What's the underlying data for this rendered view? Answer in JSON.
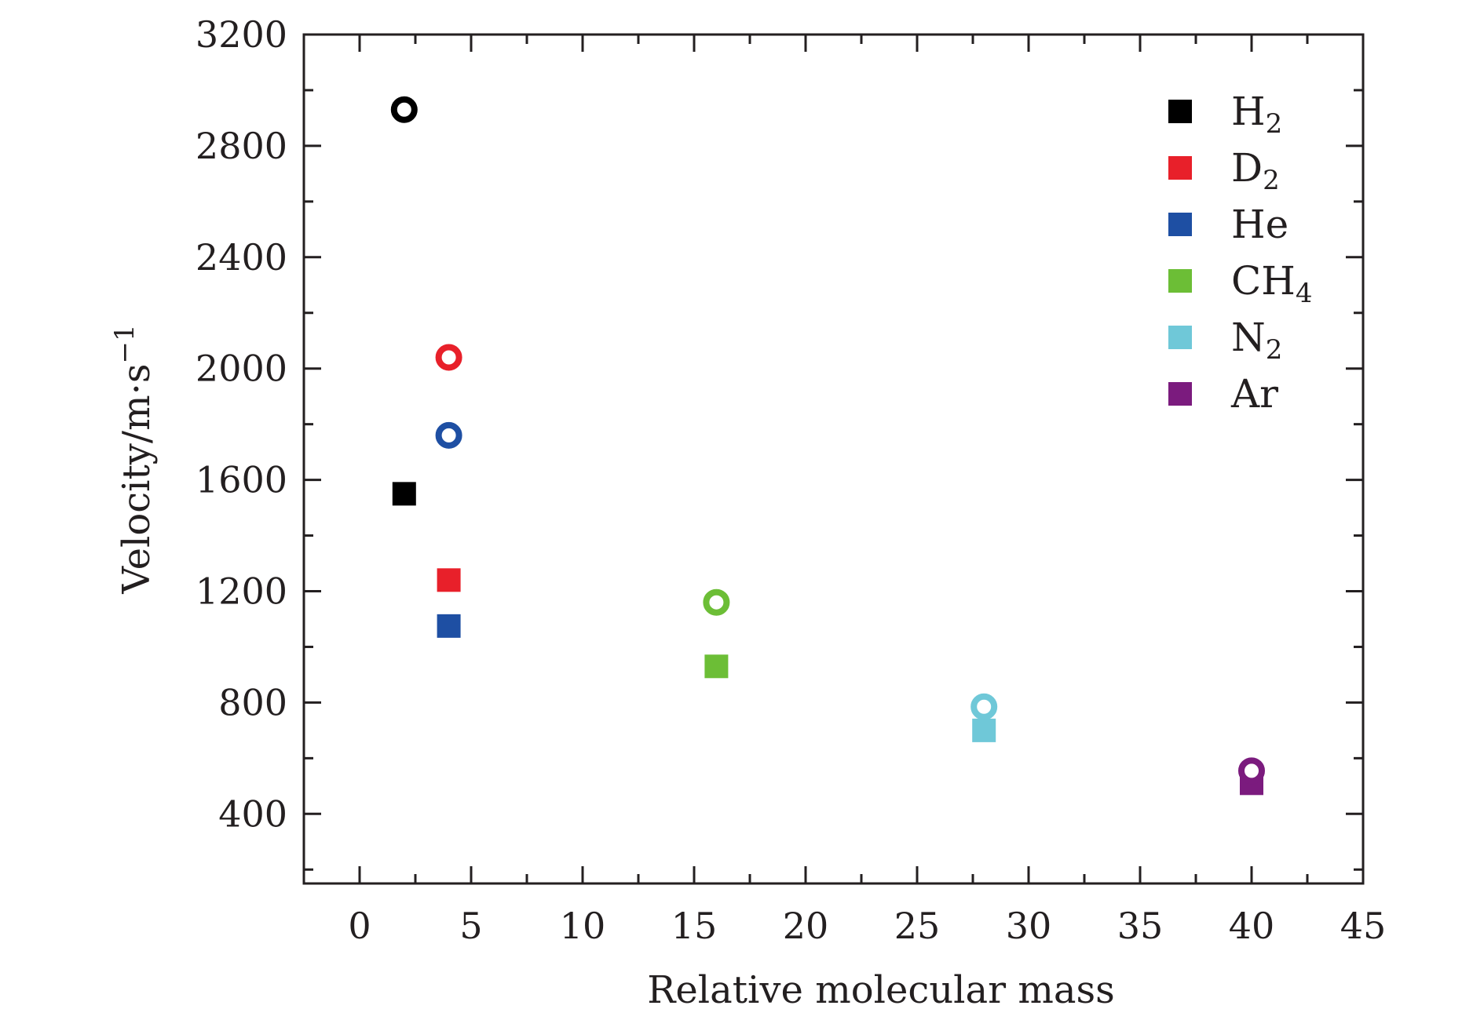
{
  "chart_data": {
    "type": "scatter",
    "xlabel": "Relative molecular mass",
    "ylabel": {
      "base": "Velocity/m·s",
      "sup": "−1"
    },
    "xlim": [
      -2.5,
      45
    ],
    "ylim": [
      150,
      3200
    ],
    "xticks": [
      0,
      5,
      10,
      15,
      20,
      25,
      30,
      35,
      40,
      45
    ],
    "yticks": [
      400,
      800,
      1200,
      1600,
      2000,
      2400,
      2800,
      3200
    ],
    "grid": false,
    "legend_position": "top-right",
    "series": [
      {
        "name": "H₂",
        "label": {
          "base": "H",
          "sub": "2"
        },
        "color": "#000000",
        "x": 2,
        "square": 1550,
        "circle": 2930
      },
      {
        "name": "D₂",
        "label": {
          "base": "D",
          "sub": "2"
        },
        "color": "#e8202a",
        "x": 4,
        "square": 1240,
        "circle": 2040
      },
      {
        "name": "He",
        "label": {
          "base": "He",
          "sub": ""
        },
        "color": "#1e4fa3",
        "x": 4,
        "square": 1075,
        "circle": 1760
      },
      {
        "name": "CH₄",
        "label": {
          "base": "CH",
          "sub": "4"
        },
        "color": "#6cbe36",
        "x": 16,
        "square": 930,
        "circle": 1160
      },
      {
        "name": "N₂",
        "label": {
          "base": "N",
          "sub": "2"
        },
        "color": "#6fc8d8",
        "x": 28,
        "square": 700,
        "circle": 785
      },
      {
        "name": "Ar",
        "label": {
          "base": "Ar",
          "sub": ""
        },
        "color": "#7b1b7e",
        "x": 40,
        "square": 510,
        "circle": 555
      }
    ]
  }
}
